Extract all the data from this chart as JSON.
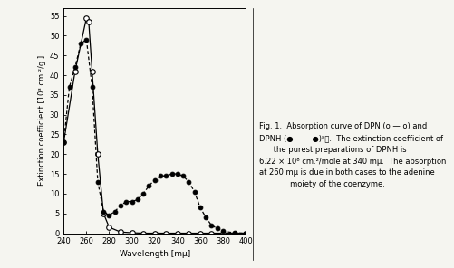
{
  "xlabel": "Wavelength [mμ]",
  "ylabel": "Extinction coefficient [10³ cm.²/g.]",
  "xlim": [
    240,
    400
  ],
  "ylim": [
    0,
    57
  ],
  "yticks": [
    0,
    5,
    10,
    15,
    20,
    25,
    30,
    35,
    40,
    45,
    50,
    55
  ],
  "xticks": [
    240,
    260,
    280,
    300,
    320,
    340,
    360,
    380,
    400
  ],
  "dpn_x": [
    240,
    250,
    260,
    262,
    265,
    270,
    275,
    280,
    290,
    300,
    310,
    320,
    330,
    340,
    350,
    360,
    370,
    380,
    390,
    400
  ],
  "dpn_y": [
    23,
    41,
    54.5,
    53.5,
    41,
    20,
    5,
    1.5,
    0.3,
    0.1,
    0.0,
    0.0,
    0.0,
    0.0,
    0.0,
    0.0,
    0.0,
    0.0,
    0.0,
    0.0
  ],
  "dpnh_x": [
    240,
    245,
    250,
    255,
    260,
    265,
    270,
    275,
    280,
    285,
    290,
    295,
    300,
    305,
    310,
    315,
    320,
    325,
    330,
    335,
    340,
    345,
    350,
    355,
    360,
    365,
    370,
    375,
    380,
    390,
    400
  ],
  "dpnh_y": [
    23,
    37,
    42,
    48,
    49,
    37,
    13,
    5.5,
    4.5,
    5.5,
    7.0,
    8.0,
    8.0,
    8.5,
    10,
    12,
    13.5,
    14.5,
    14.5,
    15,
    15,
    14.5,
    13.0,
    10.5,
    6.5,
    4.0,
    2.0,
    1.2,
    0.5,
    0.1,
    0.0
  ],
  "dpn_color": "#000000",
  "dpnh_color": "#000000",
  "background_color": "#f5f5f0",
  "caption_line1": "Fig. 1.  Absorption curve of DPN (o — o) and",
  "caption_line2": "DPNH (●—————●)⁸⧩. The extinction coefficient of",
  "caption_line3": "        the purest preparations of DPNH is",
  "caption_line4": "6.22 × 10⁶ cm.²/mole at 340 mμ.  The absorption",
  "caption_line5": "at 260 mμ is due in both cases to the adenine",
  "caption_line6": "              moiety of the coenzyme."
}
